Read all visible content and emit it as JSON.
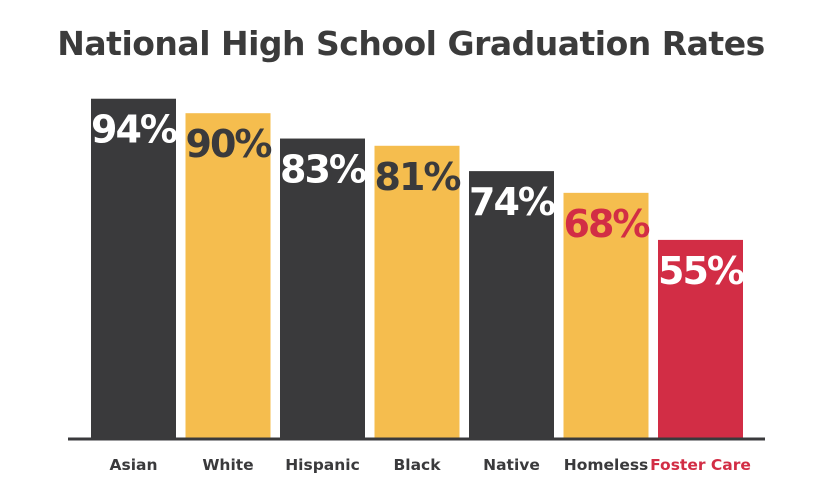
{
  "chart_data": {
    "type": "bar",
    "title": "National High School Graduation Rates",
    "categories": [
      "Asian",
      "White",
      "Hispanic",
      "Black",
      "Native",
      "Homeless",
      "Foster Care"
    ],
    "values": [
      94,
      90,
      83,
      81,
      74,
      68,
      55
    ],
    "data_labels": [
      "94%",
      "90%",
      "83%",
      "81%",
      "74%",
      "68%",
      "55%"
    ],
    "unit": "%",
    "xlabel": "",
    "ylabel": "",
    "ylim": [
      0,
      100
    ],
    "grid": false,
    "legend": "none",
    "bar_colors": [
      "#3a3a3c",
      "#f5bd4e",
      "#3a3a3c",
      "#f5bd4e",
      "#3a3a3c",
      "#f5bd4e",
      "#d22d45"
    ],
    "label_colors": [
      "#ffffff",
      "#3a3a3c",
      "#ffffff",
      "#3a3a3c",
      "#ffffff",
      "#d22d45",
      "#ffffff"
    ],
    "category_label_colors": [
      "#3a3a3c",
      "#3a3a3c",
      "#3a3a3c",
      "#3a3a3c",
      "#3a3a3c",
      "#3a3a3c",
      "#d22d45"
    ],
    "baseline_color": "#3a3a3c",
    "title_color": "#3b3b3b"
  }
}
